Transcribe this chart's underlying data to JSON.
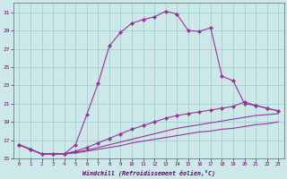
{
  "xlabel": "Windchill (Refroidissement éolien,°C)",
  "bg_color": "#cce8e8",
  "grid_color": "#99cccc",
  "line_color": "#993399",
  "xlim": [
    -0.5,
    23.5
  ],
  "ylim": [
    15,
    32
  ],
  "xticks": [
    0,
    1,
    2,
    3,
    4,
    5,
    6,
    7,
    8,
    9,
    10,
    11,
    12,
    13,
    14,
    15,
    16,
    17,
    18,
    19,
    20,
    21,
    22,
    23
  ],
  "yticks": [
    15,
    17,
    19,
    21,
    23,
    25,
    27,
    29,
    31
  ],
  "s0_x": [
    0,
    1,
    2,
    3,
    4,
    5,
    6,
    7,
    8,
    9,
    10,
    11,
    12,
    13,
    14,
    15,
    16,
    17,
    18,
    19,
    20,
    21,
    22,
    23
  ],
  "s0_y": [
    16.5,
    16.0,
    15.5,
    15.5,
    15.5,
    16.5,
    19.8,
    23.2,
    27.3,
    28.8,
    29.8,
    30.2,
    30.5,
    31.1,
    30.8,
    29.0,
    28.9,
    29.3,
    24.0,
    23.5,
    21.0,
    20.8,
    20.5,
    20.2
  ],
  "s1_x": [
    0,
    1,
    2,
    3,
    4,
    5,
    6,
    7,
    8,
    9,
    10,
    11,
    12,
    13,
    14,
    15,
    16,
    17,
    18,
    19,
    20,
    21,
    22,
    23
  ],
  "s1_y": [
    16.5,
    16.0,
    15.5,
    15.5,
    15.5,
    15.8,
    16.2,
    16.7,
    17.2,
    17.7,
    18.2,
    18.6,
    19.0,
    19.4,
    19.7,
    19.9,
    20.1,
    20.3,
    20.5,
    20.7,
    21.2,
    20.8,
    20.5,
    20.2
  ],
  "s2_x": [
    0,
    1,
    2,
    3,
    4,
    5,
    6,
    7,
    8,
    9,
    10,
    11,
    12,
    13,
    14,
    15,
    16,
    17,
    18,
    19,
    20,
    21,
    22,
    23
  ],
  "s2_y": [
    16.5,
    16.0,
    15.5,
    15.5,
    15.5,
    15.7,
    15.9,
    16.2,
    16.5,
    16.8,
    17.1,
    17.4,
    17.7,
    18.0,
    18.3,
    18.5,
    18.7,
    18.9,
    19.1,
    19.3,
    19.5,
    19.7,
    19.8,
    19.9
  ],
  "s3_x": [
    0,
    1,
    2,
    3,
    4,
    5,
    6,
    7,
    8,
    9,
    10,
    11,
    12,
    13,
    14,
    15,
    16,
    17,
    18,
    19,
    20,
    21,
    22,
    23
  ],
  "s3_y": [
    16.5,
    16.0,
    15.5,
    15.5,
    15.5,
    15.6,
    15.8,
    16.0,
    16.2,
    16.4,
    16.7,
    16.9,
    17.1,
    17.3,
    17.5,
    17.7,
    17.9,
    18.0,
    18.2,
    18.3,
    18.5,
    18.7,
    18.8,
    19.0
  ]
}
